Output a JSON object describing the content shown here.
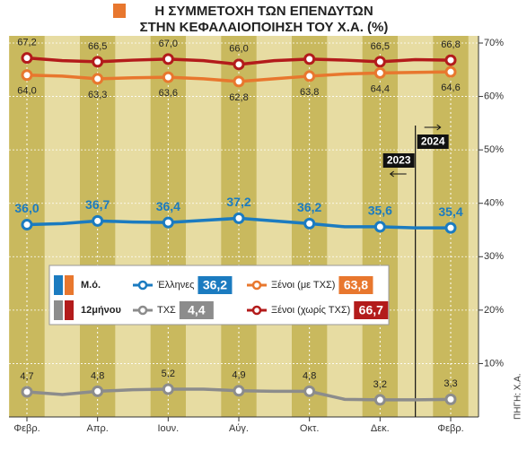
{
  "chart_data": {
    "type": "line",
    "title": "Η ΣΥΜΜΕΤΟΧΗ ΤΩΝ ΕΠΕΝΔΥΤΩΝ",
    "subtitle": "ΣΤΗΝ ΚΕΦΑΛΑΙΟΠΟΙΗΣΗ ΤΟΥ Χ.Α. (%)",
    "source": "ΠΗΓΗ: Χ.Α.",
    "legend_title": [
      "Μ.ό.",
      "12μήνου"
    ],
    "annotations": [
      "2023",
      "2024"
    ],
    "categories": [
      "Φεβρ.",
      null,
      "Απρ.",
      null,
      "Ιουν.",
      null,
      "Αύγ.",
      null,
      "Οκτ.",
      null,
      "Δεκ.",
      null,
      "Φεβρ."
    ],
    "ylim": [
      0,
      70
    ],
    "yticks": [
      {
        "value": 10,
        "label": "10%"
      },
      {
        "value": 20,
        "label": "20%"
      },
      {
        "value": 30,
        "label": "30%"
      },
      {
        "value": 40,
        "label": "40%"
      },
      {
        "value": 50,
        "label": "50%"
      },
      {
        "value": 60,
        "label": "60%"
      },
      {
        "value": 70,
        "label": "70%"
      }
    ],
    "grid": true,
    "series": [
      {
        "name": "Ξένοι (χωρίς ΤΧΣ)",
        "color": "#b31b1b",
        "average": {
          "value": 66.7,
          "label": "66,7"
        },
        "values": [
          67.2,
          66.7,
          66.5,
          66.8,
          67.0,
          66.7,
          66.0,
          66.7,
          67.0,
          66.8,
          66.5,
          66.9,
          66.8
        ],
        "value_labels": [
          "67,2",
          null,
          "66,5",
          null,
          "67,0",
          null,
          "66,0",
          null,
          null,
          null,
          "66,5",
          null,
          "66,8"
        ]
      },
      {
        "name": "Ξένοι (με ΤΧΣ)",
        "color": "#e8772e",
        "average": {
          "value": 63.8,
          "label": "63,8"
        },
        "values": [
          64.0,
          63.8,
          63.3,
          63.5,
          63.6,
          63.3,
          62.8,
          63.3,
          63.8,
          64.2,
          64.4,
          64.5,
          64.6
        ],
        "value_labels": [
          "64,0",
          null,
          "63,3",
          null,
          "63,6",
          null,
          "62,8",
          null,
          "63,8",
          null,
          "64,4",
          null,
          "64,6"
        ]
      },
      {
        "name": "Έλληνες",
        "color": "#1b7bc0",
        "average": {
          "value": 36.2,
          "label": "36,2"
        },
        "values": [
          36.0,
          36.2,
          36.7,
          36.5,
          36.4,
          36.8,
          37.2,
          36.7,
          36.2,
          35.6,
          35.6,
          35.4,
          35.4
        ],
        "value_labels": [
          "36,0",
          null,
          "36,7",
          null,
          "36,4",
          null,
          "37,2",
          null,
          "36,2",
          null,
          "35,6",
          null,
          "35,4"
        ]
      },
      {
        "name": "ΤΧΣ",
        "color": "#8c8c8c",
        "average": {
          "value": 4.4,
          "label": "4,4"
        },
        "values": [
          4.7,
          4.2,
          4.8,
          5.1,
          5.2,
          5.2,
          4.9,
          4.8,
          4.8,
          3.3,
          3.2,
          3.2,
          3.3
        ],
        "value_labels": [
          "4,7",
          null,
          "4,8",
          null,
          "5,2",
          null,
          "4,9",
          null,
          "4,8",
          null,
          "3,2",
          null,
          "3,3"
        ]
      }
    ]
  }
}
